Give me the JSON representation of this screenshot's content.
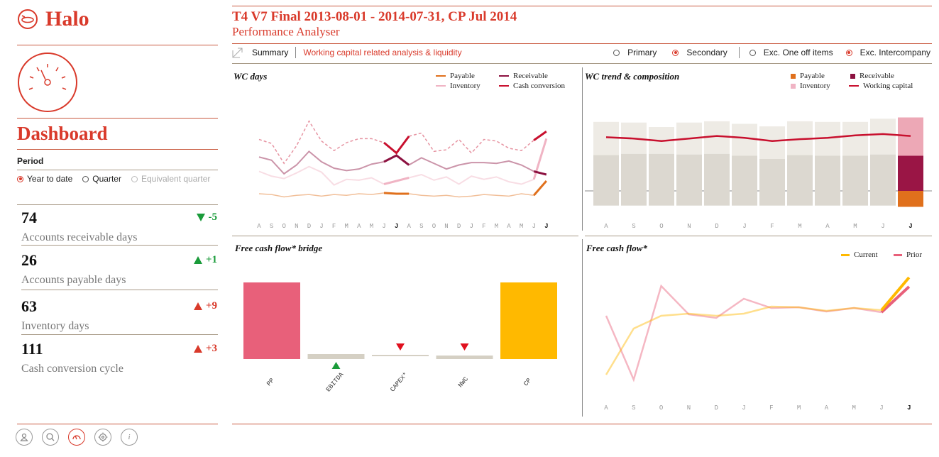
{
  "app": {
    "name": "Halo"
  },
  "sidebar": {
    "title": "Dashboard",
    "period": {
      "label": "Period",
      "options": [
        {
          "label": "Year to date",
          "selected": true,
          "disabled": false
        },
        {
          "label": "Quarter",
          "selected": false,
          "disabled": false
        },
        {
          "label": "Equivalent quarter",
          "selected": false,
          "disabled": true
        }
      ]
    },
    "kpis": [
      {
        "value": "74",
        "label": "Accounts receivable days",
        "delta": "-5",
        "direction": "down",
        "color": "#1a9b3a"
      },
      {
        "value": "26",
        "label": "Accounts payable days",
        "delta": "+1",
        "direction": "up",
        "color": "#1a9b3a"
      },
      {
        "value": "63",
        "label": "Inventory days",
        "delta": "+9",
        "direction": "up",
        "color": "#d93a2b"
      },
      {
        "value": "111",
        "label": "Cash conversion cycle",
        "delta": "+3",
        "direction": "up",
        "color": "#d93a2b"
      }
    ],
    "bottom_icons": [
      "user-icon",
      "search-icon",
      "dashboard-gauge-icon",
      "target-icon",
      "info-icon"
    ]
  },
  "header": {
    "title": "T4 V7 Final 2013-08-01 - 2014-07-31, CP Jul 2014",
    "subtitle": "Performance Analyser"
  },
  "toolbar": {
    "summary_label": "Summary",
    "breadcrumb": "Working capital related analysis & liquidity",
    "view_options": [
      {
        "label": "Primary",
        "selected": false
      },
      {
        "label": "Secondary",
        "selected": true
      }
    ],
    "filter_options": [
      {
        "label": "Exc. One off items",
        "selected": false
      },
      {
        "label": "Exc.  Intercompany",
        "selected": true
      }
    ]
  },
  "colors": {
    "accent": "#d93a2b",
    "payable": "#e0701c",
    "receivable": "#8c1140",
    "inventory": "#f0b4c4",
    "cash_conversion": "#c8102e",
    "current": "#ffb900",
    "prior": "#e8607a"
  },
  "chart_data": [
    {
      "type": "line",
      "title": "WC days",
      "x": [
        "A",
        "S",
        "O",
        "N",
        "D",
        "J",
        "F",
        "M",
        "A",
        "M",
        "J",
        "J",
        "A",
        "S",
        "O",
        "N",
        "D",
        "J",
        "F",
        "M",
        "A",
        "M",
        "J",
        "J"
      ],
      "highlight_ticks": [
        11,
        23
      ],
      "series": [
        {
          "name": "Payable",
          "color": "#e0701c",
          "values": [
            24,
            23,
            20,
            22,
            23,
            21,
            23,
            22,
            24,
            23,
            25,
            24,
            24,
            22,
            21,
            22,
            20,
            21,
            23,
            22,
            21,
            24,
            22,
            40
          ]
        },
        {
          "name": "Receivable",
          "color": "#8c1140",
          "values": [
            70,
            66,
            49,
            60,
            77,
            64,
            56,
            53,
            55,
            61,
            64,
            72,
            60,
            69,
            62,
            55,
            60,
            63,
            63,
            62,
            65,
            60,
            52,
            48
          ]
        },
        {
          "name": "Inventory",
          "color": "#f0b4c4",
          "values": [
            52,
            46,
            43,
            50,
            58,
            51,
            35,
            42,
            41,
            44,
            36,
            40,
            44,
            48,
            41,
            45,
            36,
            46,
            42,
            45,
            39,
            36,
            42,
            93
          ]
        },
        {
          "name": "Cash conversion",
          "color": "#c8102e",
          "values": [
            92,
            87,
            62,
            84,
            115,
            90,
            78,
            88,
            93,
            93,
            88,
            75,
            96,
            100,
            77,
            79,
            92,
            75,
            92,
            90,
            81,
            78,
            91,
            102
          ]
        }
      ],
      "ylim": [
        0,
        120
      ]
    },
    {
      "type": "bar",
      "title": "WC trend & composition",
      "categories": [
        "A",
        "S",
        "O",
        "N",
        "D",
        "J",
        "F",
        "M",
        "A",
        "M",
        "J",
        "J"
      ],
      "highlight_ticks": [
        11
      ],
      "series": [
        {
          "name": "Payable",
          "color": "#e0701c",
          "values": [
            0,
            0,
            0,
            0,
            0,
            0,
            0,
            0,
            0,
            0,
            0,
            -25
          ]
        },
        {
          "name": "Receivable",
          "color": "#8c1140",
          "values": [
            0,
            0,
            0,
            0,
            0,
            0,
            0,
            0,
            0,
            0,
            0,
            55
          ]
        },
        {
          "name": "Inventory",
          "color": "#f0b4c4",
          "values": [
            0,
            0,
            0,
            0,
            0,
            0,
            0,
            0,
            0,
            0,
            0,
            60
          ]
        },
        {
          "name": "Working capital",
          "color": "#c8102e",
          "values": [
            84,
            82,
            78,
            82,
            86,
            83,
            78,
            81,
            83,
            87,
            89,
            86
          ]
        }
      ],
      "prior_totals_grey": [
        108,
        107,
        100,
        107,
        109,
        105,
        101,
        109,
        108,
        108,
        113,
        0
      ],
      "prior_negative_grey": [
        -23,
        -23,
        -23,
        -23,
        -23,
        -23,
        -23,
        -23,
        -23,
        -23,
        -23,
        0
      ],
      "prior_top_grey": [
        52,
        49,
        42,
        50,
        51,
        50,
        51,
        53,
        53,
        53,
        56,
        0
      ]
    },
    {
      "type": "bar",
      "title": "Free cash flow* bridge",
      "categories": [
        "PP",
        "EBITDA",
        "CAPEX*",
        "NWC",
        "CP"
      ],
      "values": [
        108,
        7,
        -2,
        5,
        108
      ],
      "markers": [
        "none",
        "up",
        "down",
        "down",
        "none"
      ],
      "colors": [
        "#e8607a",
        "#d5d0c4",
        "#d5d0c4",
        "#d5d0c4",
        "#ffb900"
      ]
    },
    {
      "type": "line",
      "title": "Free cash flow*",
      "x": [
        "A",
        "S",
        "O",
        "N",
        "D",
        "J",
        "F",
        "M",
        "A",
        "M",
        "J",
        "J"
      ],
      "highlight_ticks": [
        11
      ],
      "series": [
        {
          "name": "Current",
          "color": "#ffb900",
          "values": [
            2,
            67,
            85,
            88,
            85,
            88,
            98,
            97,
            92,
            96,
            93,
            139
          ]
        },
        {
          "name": "Prior",
          "color": "#e8607a",
          "values": [
            85,
            -5,
            127,
            87,
            82,
            109,
            96,
            97,
            91,
            96,
            90,
            126
          ]
        }
      ],
      "ylim": [
        -10,
        150
      ]
    }
  ]
}
